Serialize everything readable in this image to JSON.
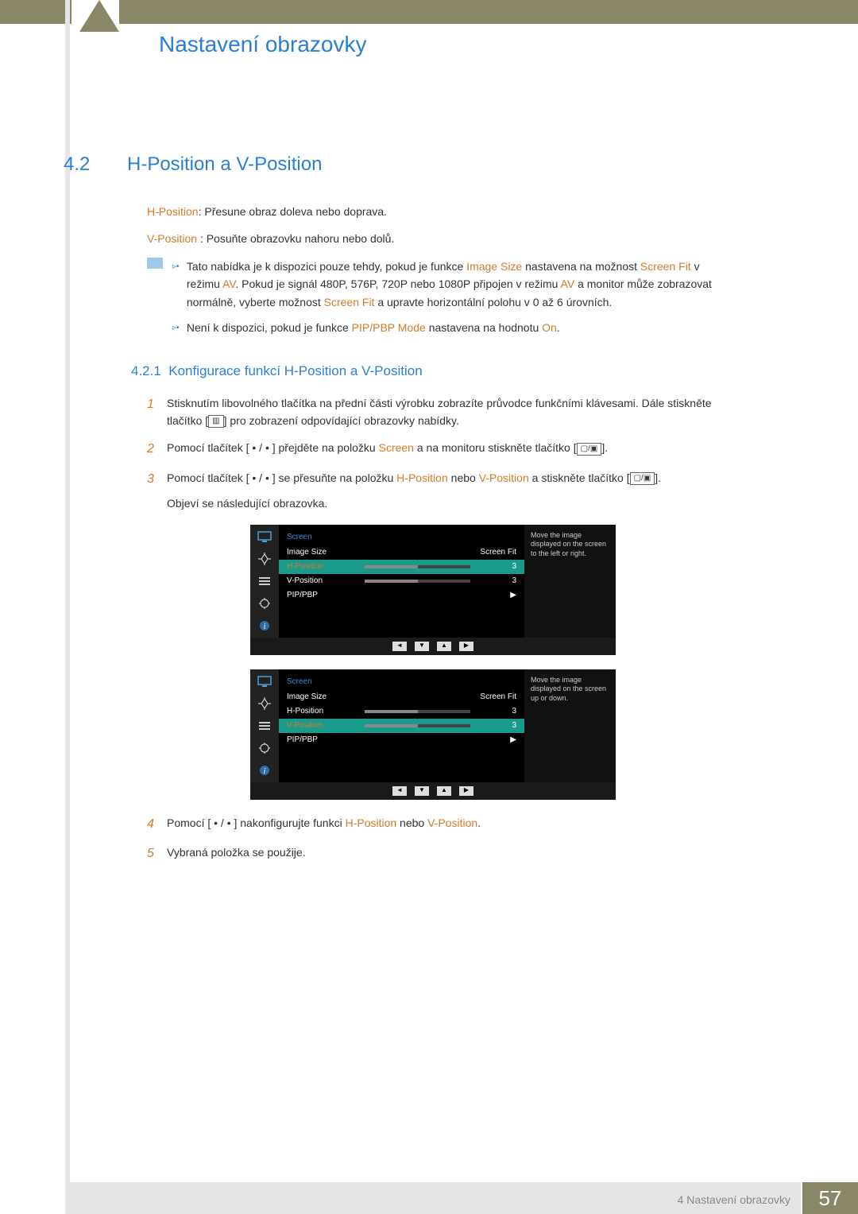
{
  "chapter_title": "Nastavení obrazovky",
  "section_num": "4.2",
  "section_title": "H-Position a V-Position",
  "hpos_label": "H-Position",
  "hpos_desc": ": Přesune obraz doleva nebo doprava.",
  "vpos_label": "V-Position ",
  "vpos_desc": ": Posuňte obrazovku nahoru nebo dolů.",
  "note1_a": "Tato nabídka je k dispozici pouze tehdy, pokud je funkce ",
  "note1_hl1": "Image Size",
  "note1_b": " nastavena na možnost ",
  "note1_hl2": "Screen Fit",
  "note1_c": " v režimu ",
  "note1_hl3": "AV",
  "note1_d": ". Pokud je signál 480P, 576P, 720P nebo 1080P připojen v režimu ",
  "note1_hl4": "AV",
  "note1_e": " a monitor může zobrazovat normálně, vyberte možnost ",
  "note1_hl5": "Screen Fit",
  "note1_f": " a upravte horizontální polohu v 0 až 6 úrovních.",
  "note2_a": "Není k dispozici, pokud je funkce ",
  "note2_hl1": "PIP/PBP Mode",
  "note2_b": " nastavena na hodnotu ",
  "note2_hl2": "On",
  "note2_c": ".",
  "subsection_num": "4.2.1",
  "subsection_title": "Konfigurace funkcí H-Position a V-Position",
  "step1": "Stisknutím libovolného tlačítka na přední části výrobku zobrazíte průvodce funkčními klávesami. Dále stiskněte tlačítko [",
  "step1_icon": "▥",
  "step1_b": "] pro zobrazení odpovídající obrazovky nabídky.",
  "step2_a": "Pomocí tlačítek [ • / • ] přejděte na položku ",
  "step2_hl": "Screen",
  "step2_b": " a na monitoru stiskněte tlačítko [",
  "step2_icon": "▢/▣",
  "step2_c": "].",
  "step3_a": "Pomocí tlačítek [ • / • ] se přesuňte na položku ",
  "step3_hl1": "H-Position",
  "step3_b": " nebo ",
  "step3_hl2": "V-Position",
  "step3_c": " a stiskněte tlačítko [",
  "step3_icon": "▢/▣",
  "step3_d": "].",
  "step3_follow": "Objeví se následující obrazovka.",
  "step4_a": "Pomocí [ • / • ] nakonfigurujte funkci ",
  "step4_hl1": "H-Position",
  "step4_b": " nebo ",
  "step4_hl2": "V-Position",
  "step4_c": ".",
  "step5": "Vybraná položka se použije.",
  "osd1": {
    "title": "Screen",
    "rows": [
      {
        "label": "Image Size",
        "val": "Screen Fit",
        "type": "text"
      },
      {
        "label": "H-Position",
        "val": "3",
        "type": "bar",
        "sel": true,
        "hl": true
      },
      {
        "label": "V-Position",
        "val": "3",
        "type": "bar"
      },
      {
        "label": "PIP/PBP",
        "val": "▶",
        "type": "arrow"
      }
    ],
    "desc": "Move the image displayed on the screen to the left or right."
  },
  "osd2": {
    "title": "Screen",
    "rows": [
      {
        "label": "Image Size",
        "val": "Screen Fit",
        "type": "text"
      },
      {
        "label": "H-Position",
        "val": "3",
        "type": "bar"
      },
      {
        "label": "V-Position",
        "val": "3",
        "type": "bar",
        "sel": true,
        "hl": true
      },
      {
        "label": "PIP/PBP",
        "val": "▶",
        "type": "arrow"
      }
    ],
    "desc": "Move the image displayed on the screen up or down."
  },
  "footer_text": "4 Nastavení obrazovky",
  "page_num": "57",
  "colors": {
    "accent": "#2a7fd4",
    "highlight": "#d47a2a",
    "khaki": "#8a8668",
    "teal": "#1a9a8a"
  }
}
